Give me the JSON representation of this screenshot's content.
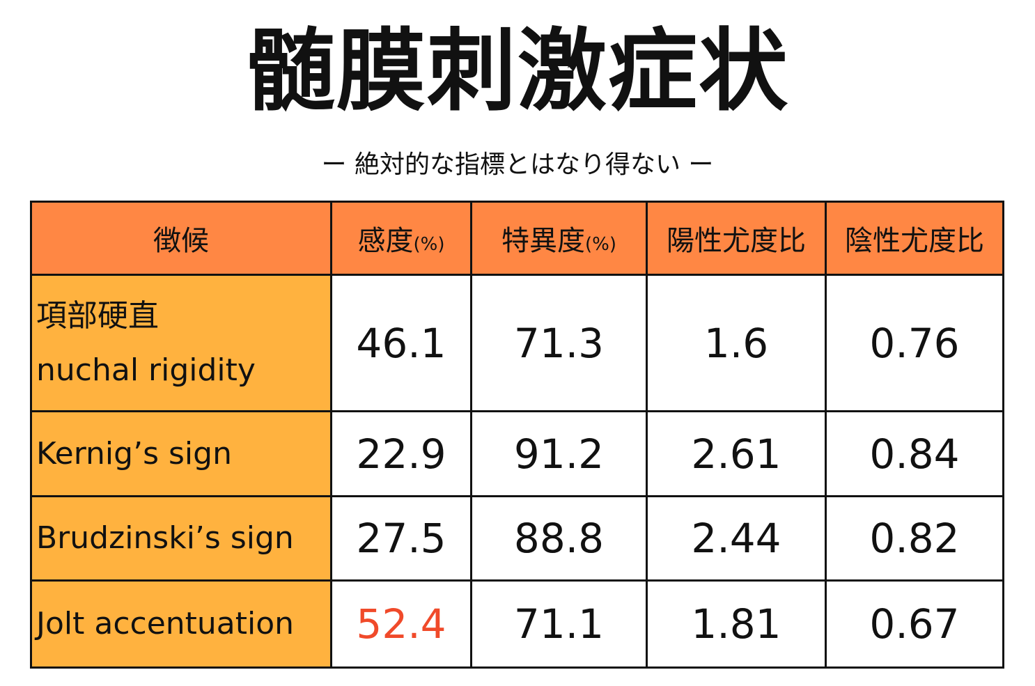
{
  "title": "髄膜刺激症状",
  "subtitle": "ー 絶対的な指標とはなり得ない ー",
  "table": {
    "headers": [
      {
        "label": "徴候",
        "unit": ""
      },
      {
        "label": "感度",
        "unit": "(%)"
      },
      {
        "label": "特異度",
        "unit": "(%)"
      },
      {
        "label": "陽性尤度比",
        "unit": ""
      },
      {
        "label": "陰性尤度比",
        "unit": ""
      }
    ],
    "rows": [
      {
        "sign_ja": "項部硬直",
        "sign": "nuchal rigidity",
        "sensitivity": "46.1",
        "specificity": "71.3",
        "plr": "1.6",
        "nlr": "0.76"
      },
      {
        "sign_ja": "",
        "sign": "Kernig’s sign",
        "sensitivity": "22.9",
        "specificity": "91.2",
        "plr": "2.61",
        "nlr": "0.84"
      },
      {
        "sign_ja": "",
        "sign": "Brudzinski’s sign",
        "sensitivity": "27.5",
        "specificity": "88.8",
        "plr": "2.44",
        "nlr": "0.82"
      },
      {
        "sign_ja": "",
        "sign": "Jolt accentuation",
        "sensitivity": "52.4",
        "specificity": "71.1",
        "plr": "1.81",
        "nlr": "0.67"
      }
    ]
  },
  "colors": {
    "header_bg": "#FF8744",
    "row_header_bg": "#FFB23F",
    "highlight_text": "#F04A2A"
  }
}
